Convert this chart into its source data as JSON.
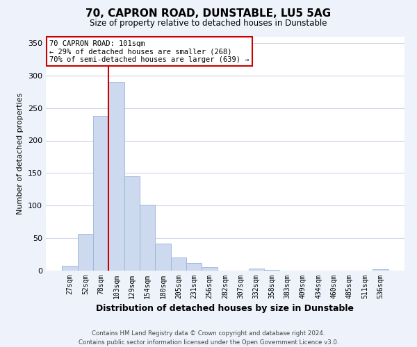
{
  "title": "70, CAPRON ROAD, DUNSTABLE, LU5 5AG",
  "subtitle": "Size of property relative to detached houses in Dunstable",
  "xlabel": "Distribution of detached houses by size in Dunstable",
  "ylabel": "Number of detached properties",
  "bar_labels": [
    "27sqm",
    "52sqm",
    "78sqm",
    "103sqm",
    "129sqm",
    "154sqm",
    "180sqm",
    "205sqm",
    "231sqm",
    "256sqm",
    "282sqm",
    "307sqm",
    "332sqm",
    "358sqm",
    "383sqm",
    "409sqm",
    "434sqm",
    "460sqm",
    "485sqm",
    "511sqm",
    "536sqm"
  ],
  "bar_heights": [
    8,
    57,
    238,
    290,
    145,
    101,
    42,
    20,
    12,
    5,
    0,
    0,
    3,
    1,
    0,
    0,
    0,
    0,
    0,
    0,
    2
  ],
  "bar_color": "#ccd9ee",
  "bar_edgecolor": "#9ab5d9",
  "vline_color": "#cc0000",
  "vline_x_index": 3,
  "annotation_title": "70 CAPRON ROAD: 101sqm",
  "annotation_line1": "← 29% of detached houses are smaller (268)",
  "annotation_line2": "70% of semi-detached houses are larger (639) →",
  "annotation_box_facecolor": "#ffffff",
  "annotation_box_edgecolor": "#cc0000",
  "ylim": [
    0,
    360
  ],
  "yticks": [
    0,
    50,
    100,
    150,
    200,
    250,
    300,
    350
  ],
  "footer_line1": "Contains HM Land Registry data © Crown copyright and database right 2024.",
  "footer_line2": "Contains public sector information licensed under the Open Government Licence v3.0.",
  "background_color": "#eef2fa",
  "plot_bg_color": "#ffffff",
  "grid_color": "#ccd5e8",
  "title_fontsize": 11,
  "subtitle_fontsize": 8.5,
  "ylabel_fontsize": 8,
  "xlabel_fontsize": 9,
  "tick_fontsize": 7,
  "annot_fontsize": 7.5,
  "footer_fontsize": 6.2
}
